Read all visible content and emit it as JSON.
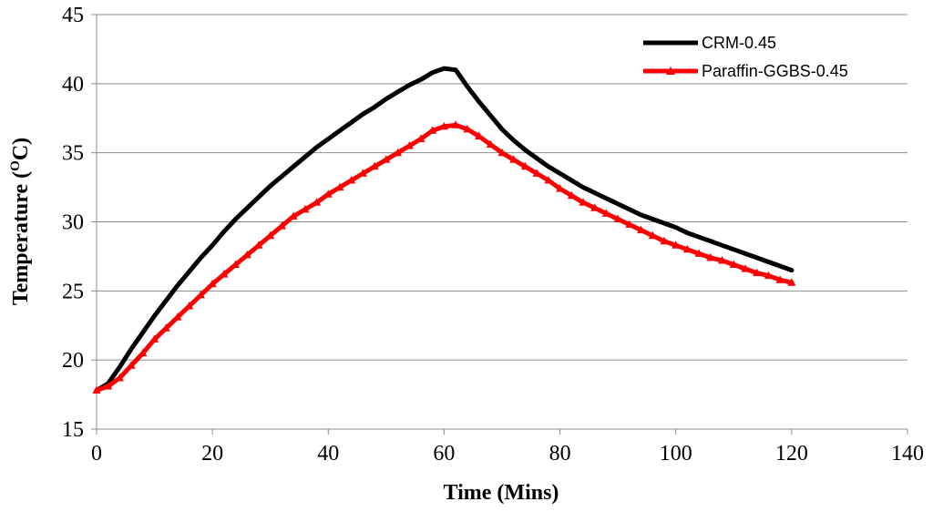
{
  "chart_data": {
    "type": "line",
    "title": "",
    "xlabel": "Time (Mins)",
    "ylabel_main": "Temperature (",
    "ylabel_sup": "O",
    "ylabel_tail": "C)",
    "xlim": [
      0,
      140
    ],
    "ylim": [
      15,
      45
    ],
    "xticks": [
      0,
      20,
      40,
      60,
      80,
      100,
      120,
      140
    ],
    "yticks": [
      15,
      20,
      25,
      30,
      35,
      40,
      45
    ],
    "grid": "horizontal",
    "legend_position": "top-right",
    "series": [
      {
        "name": "CRM-0.45",
        "color": "#000000",
        "marker": "none",
        "x": [
          0,
          2,
          4,
          6,
          8,
          10,
          12,
          14,
          16,
          18,
          20,
          22,
          24,
          26,
          28,
          30,
          32,
          34,
          36,
          38,
          40,
          42,
          44,
          46,
          48,
          50,
          52,
          54,
          56,
          58,
          60,
          62,
          64,
          66,
          68,
          70,
          72,
          74,
          76,
          78,
          80,
          82,
          84,
          86,
          88,
          90,
          92,
          94,
          96,
          98,
          100,
          102,
          104,
          106,
          108,
          110,
          112,
          114,
          116,
          118,
          120
        ],
        "y": [
          17.8,
          18.3,
          19.5,
          20.8,
          22.0,
          23.2,
          24.3,
          25.4,
          26.4,
          27.4,
          28.3,
          29.3,
          30.2,
          31.0,
          31.8,
          32.6,
          33.3,
          34.0,
          34.7,
          35.4,
          36.0,
          36.6,
          37.2,
          37.8,
          38.3,
          38.9,
          39.4,
          39.9,
          40.3,
          40.8,
          41.1,
          41.0,
          39.8,
          38.7,
          37.7,
          36.7,
          35.9,
          35.2,
          34.6,
          34.0,
          33.5,
          33.0,
          32.5,
          32.1,
          31.7,
          31.3,
          30.9,
          30.5,
          30.2,
          29.9,
          29.6,
          29.2,
          28.9,
          28.6,
          28.3,
          28.0,
          27.7,
          27.4,
          27.1,
          26.8,
          26.5
        ]
      },
      {
        "name": "Paraffin-GGBS-0.45",
        "color": "#ff0000",
        "marker": "triangle",
        "x": [
          0,
          2,
          4,
          6,
          8,
          10,
          12,
          14,
          16,
          18,
          20,
          22,
          24,
          26,
          28,
          30,
          32,
          34,
          36,
          38,
          40,
          42,
          44,
          46,
          48,
          50,
          52,
          54,
          56,
          58,
          60,
          62,
          64,
          66,
          68,
          70,
          72,
          74,
          76,
          78,
          80,
          82,
          84,
          86,
          88,
          90,
          92,
          94,
          96,
          98,
          100,
          102,
          104,
          106,
          108,
          110,
          112,
          114,
          116,
          118,
          120
        ],
        "y": [
          17.8,
          18.1,
          18.7,
          19.6,
          20.5,
          21.5,
          22.3,
          23.1,
          23.9,
          24.7,
          25.5,
          26.2,
          26.9,
          27.6,
          28.3,
          29.0,
          29.7,
          30.4,
          30.9,
          31.4,
          32.0,
          32.5,
          33.0,
          33.5,
          34.0,
          34.5,
          35.0,
          35.5,
          36.0,
          36.6,
          36.9,
          37.0,
          36.7,
          36.2,
          35.6,
          35.0,
          34.5,
          34.0,
          33.5,
          33.0,
          32.4,
          31.9,
          31.4,
          31.0,
          30.6,
          30.2,
          29.8,
          29.4,
          29.0,
          28.6,
          28.3,
          28.0,
          27.7,
          27.4,
          27.2,
          26.9,
          26.6,
          26.3,
          26.1,
          25.8,
          25.6
        ]
      }
    ]
  }
}
